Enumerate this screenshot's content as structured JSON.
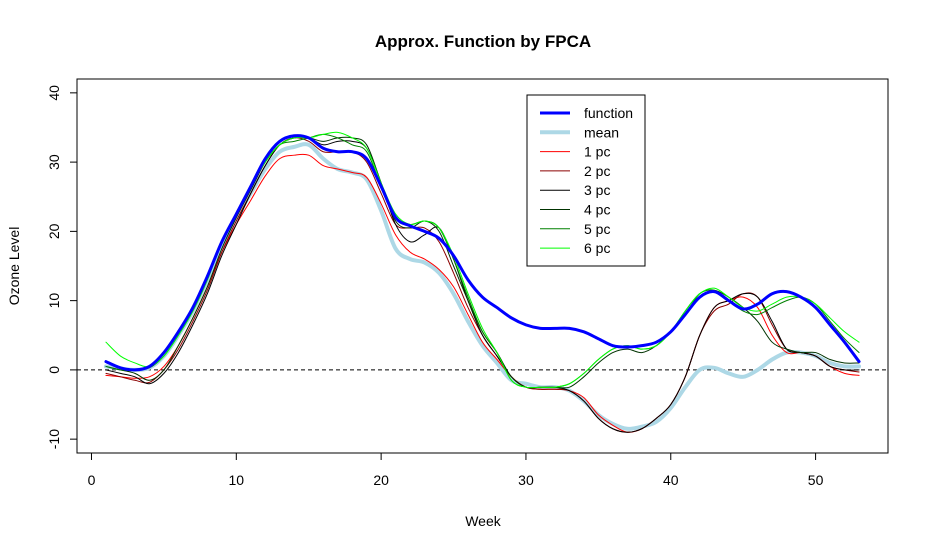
{
  "chart_data": {
    "type": "line",
    "title": "Approx. Function by FPCA",
    "xlabel": "Week",
    "ylabel": "Ozone Level",
    "xlim": [
      -1,
      55
    ],
    "ylim": [
      -12,
      42
    ],
    "x_ticks": [
      0,
      10,
      20,
      30,
      40,
      50
    ],
    "y_ticks": [
      -10,
      0,
      10,
      20,
      30,
      40
    ],
    "reference_line": {
      "y": 0,
      "style": "dashed",
      "color": "#000000"
    },
    "legend": {
      "position": "top-right"
    },
    "x": [
      1,
      2,
      3,
      4,
      5,
      6,
      7,
      8,
      9,
      10,
      11,
      12,
      13,
      14,
      15,
      16,
      17,
      18,
      19,
      20,
      21,
      22,
      23,
      24,
      25,
      26,
      27,
      28,
      29,
      30,
      31,
      32,
      33,
      34,
      35,
      36,
      37,
      38,
      39,
      40,
      41,
      42,
      43,
      44,
      45,
      46,
      47,
      48,
      49,
      50,
      51,
      52,
      53
    ],
    "series": [
      {
        "name": "function",
        "color": "#0000ff",
        "width": 3,
        "values": [
          1.2,
          0.3,
          0.0,
          0.5,
          2.5,
          5.5,
          9.0,
          13.5,
          18.5,
          22.5,
          26.5,
          30.5,
          33.0,
          33.8,
          33.5,
          32.0,
          31.5,
          31.5,
          30.5,
          26.5,
          22.0,
          20.8,
          20.0,
          19.0,
          16.5,
          13.0,
          10.5,
          9.0,
          7.5,
          6.5,
          6.0,
          6.0,
          6.0,
          5.5,
          4.5,
          3.5,
          3.3,
          3.5,
          4.0,
          5.5,
          8.0,
          10.5,
          11.3,
          10.0,
          8.8,
          9.5,
          11.0,
          11.3,
          10.5,
          9.0,
          6.5,
          4.0,
          1.2
        ]
      },
      {
        "name": "mean",
        "color": "#add8e6",
        "width": 4,
        "values": [
          0.5,
          0.2,
          0.0,
          0.3,
          2.0,
          5.0,
          8.5,
          13.0,
          18.0,
          22.0,
          25.5,
          29.0,
          31.5,
          32.2,
          32.5,
          30.5,
          29.0,
          28.5,
          27.5,
          23.0,
          17.5,
          16.0,
          15.5,
          14.0,
          11.0,
          7.0,
          3.5,
          1.0,
          -1.5,
          -2.0,
          -2.5,
          -2.5,
          -3.0,
          -4.5,
          -6.5,
          -7.8,
          -8.5,
          -8.2,
          -7.5,
          -5.5,
          -2.5,
          0.0,
          0.3,
          -0.5,
          -1.0,
          0.0,
          1.5,
          2.5,
          2.5,
          2.0,
          1.0,
          0.5,
          0.5
        ]
      },
      {
        "name": "1 pc",
        "color": "#ff0000",
        "width": 1,
        "values": [
          -0.8,
          -1.0,
          -1.2,
          -1.0,
          0.5,
          3.5,
          7.5,
          12.0,
          17.0,
          21.0,
          24.5,
          28.0,
          30.5,
          31.0,
          31.0,
          29.5,
          29.0,
          28.5,
          27.8,
          24.0,
          19.5,
          17.0,
          16.0,
          14.5,
          12.0,
          8.0,
          4.0,
          1.5,
          -1.0,
          -2.5,
          -2.8,
          -2.8,
          -3.0,
          -4.0,
          -6.5,
          -8.0,
          -9.0,
          -8.5,
          -7.0,
          -5.0,
          -1.0,
          5.0,
          9.0,
          10.0,
          10.5,
          9.0,
          5.0,
          2.5,
          2.5,
          2.0,
          0.5,
          -0.5,
          -0.8
        ]
      },
      {
        "name": "2 pc",
        "color": "#8b0000",
        "width": 1,
        "values": [
          -0.5,
          -1.0,
          -1.5,
          -1.8,
          0.0,
          3.0,
          7.0,
          11.5,
          17.0,
          21.5,
          25.5,
          29.5,
          32.5,
          33.5,
          33.0,
          31.5,
          31.5,
          31.5,
          30.0,
          25.5,
          21.0,
          20.5,
          20.5,
          18.5,
          14.0,
          9.0,
          5.0,
          2.0,
          -1.0,
          -2.5,
          -2.8,
          -2.8,
          -3.0,
          -4.5,
          -7.0,
          -8.5,
          -9.0,
          -8.5,
          -7.0,
          -5.0,
          -1.0,
          5.0,
          8.5,
          9.5,
          11.0,
          10.5,
          6.5,
          3.0,
          2.5,
          2.0,
          0.5,
          0.0,
          -0.3
        ]
      },
      {
        "name": "3 pc",
        "color": "#000000",
        "width": 1,
        "values": [
          0.0,
          -0.5,
          -1.0,
          -2.0,
          -0.5,
          2.5,
          6.5,
          11.0,
          16.5,
          21.0,
          25.5,
          29.5,
          32.5,
          33.5,
          33.5,
          32.5,
          33.0,
          33.0,
          32.0,
          27.0,
          21.0,
          18.5,
          19.5,
          20.5,
          16.0,
          10.0,
          5.0,
          2.0,
          -1.0,
          -2.5,
          -2.5,
          -2.5,
          -3.0,
          -4.5,
          -7.0,
          -8.5,
          -9.0,
          -8.5,
          -7.0,
          -5.0,
          -1.0,
          5.0,
          9.0,
          10.0,
          11.0,
          10.5,
          7.0,
          3.0,
          2.5,
          2.0,
          0.5,
          0.0,
          0.0
        ]
      },
      {
        "name": "4 pc",
        "color": "#003300",
        "width": 1,
        "values": [
          0.5,
          0.0,
          -0.5,
          -1.5,
          0.0,
          3.5,
          7.5,
          12.0,
          17.5,
          22.0,
          26.0,
          30.0,
          32.5,
          33.5,
          33.5,
          33.0,
          33.5,
          33.5,
          32.5,
          27.0,
          21.5,
          20.5,
          21.5,
          20.0,
          15.0,
          10.0,
          5.5,
          2.5,
          -1.0,
          -2.5,
          -2.5,
          -2.5,
          -2.5,
          -1.0,
          1.0,
          2.5,
          3.0,
          2.5,
          3.5,
          5.5,
          8.0,
          11.0,
          11.5,
          10.5,
          9.0,
          7.0,
          4.0,
          3.0,
          2.5,
          2.5,
          1.5,
          1.0,
          1.0
        ]
      },
      {
        "name": "5 pc",
        "color": "#008000",
        "width": 1,
        "values": [
          0.5,
          0.0,
          0.0,
          0.3,
          2.0,
          5.0,
          8.5,
          13.0,
          18.5,
          22.5,
          26.5,
          30.0,
          32.5,
          33.0,
          33.5,
          34.0,
          33.5,
          32.5,
          31.5,
          26.5,
          22.0,
          21.0,
          21.5,
          20.5,
          16.0,
          10.5,
          5.5,
          2.5,
          -1.5,
          -2.5,
          -2.5,
          -2.5,
          -2.0,
          -0.5,
          1.5,
          3.0,
          3.5,
          3.0,
          3.5,
          5.5,
          8.5,
          11.0,
          11.5,
          10.0,
          8.5,
          8.0,
          9.0,
          10.0,
          10.5,
          9.5,
          7.0,
          4.5,
          2.5
        ]
      },
      {
        "name": "6 pc",
        "color": "#00ff00",
        "width": 1,
        "values": [
          4.0,
          2.0,
          1.0,
          0.5,
          2.0,
          5.0,
          8.5,
          13.0,
          18.5,
          22.5,
          26.5,
          30.0,
          32.5,
          33.5,
          33.5,
          34.0,
          34.3,
          33.5,
          32.0,
          27.0,
          22.5,
          21.0,
          21.5,
          20.5,
          16.5,
          11.0,
          6.0,
          2.5,
          -1.5,
          -2.5,
          -2.5,
          -2.5,
          -2.0,
          -0.5,
          1.5,
          3.0,
          3.5,
          3.0,
          3.5,
          5.5,
          8.5,
          11.0,
          11.8,
          10.5,
          9.0,
          8.5,
          9.5,
          10.5,
          10.5,
          9.5,
          7.5,
          5.5,
          4.0
        ]
      }
    ]
  }
}
